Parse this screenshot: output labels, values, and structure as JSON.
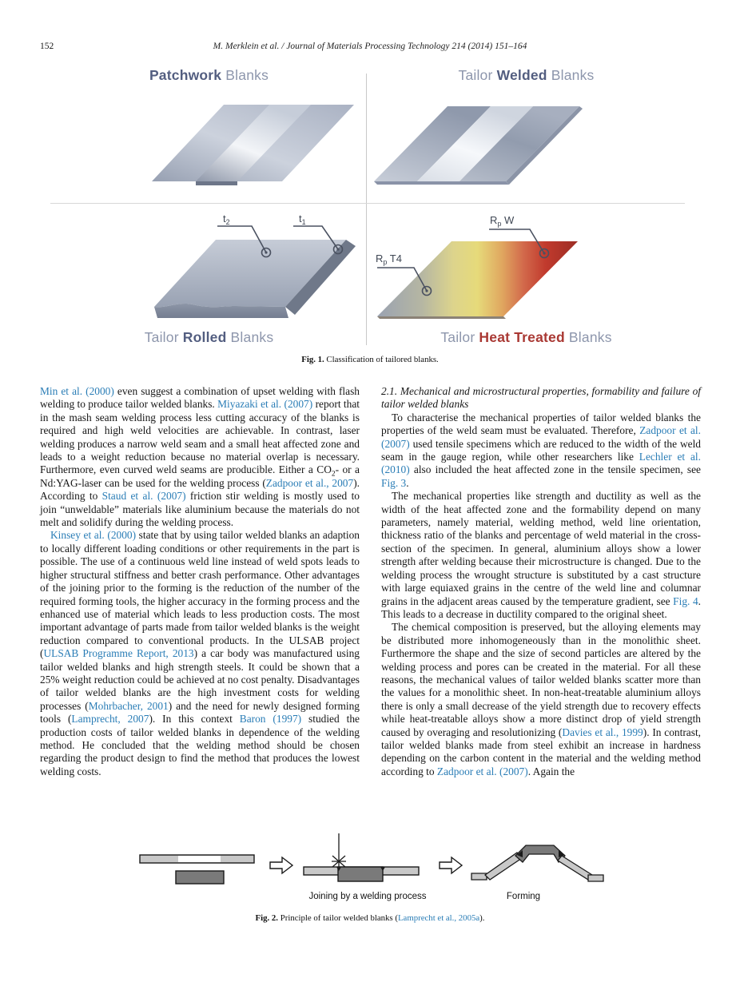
{
  "header": {
    "page_number": "152",
    "running_head": "M. Merklein et al. / Journal of Materials Processing Technology 214 (2014) 151–164"
  },
  "colors": {
    "link_blue": "#2a7db6",
    "title_light_blue": "#8d96ac",
    "title_dark_blue": "#535e80",
    "title_red": "#a93833",
    "heat_gradient_ends": [
      "#9aa2b1",
      "#e6da7a",
      "#9c2d24"
    ]
  },
  "fig1": {
    "titles": {
      "patchwork": [
        {
          "t": "Patchwork",
          "b": 1
        },
        {
          "t": " Blanks"
        }
      ],
      "welded": [
        {
          "t": "Tailor "
        },
        {
          "t": "Welded",
          "b": 1
        },
        {
          "t": " Blanks"
        }
      ],
      "rolled": [
        {
          "t": "Tailor "
        },
        {
          "t": "Rolled",
          "b": 1
        },
        {
          "t": " Blanks"
        }
      ],
      "heat": [
        {
          "t": "Tailor "
        },
        {
          "t": "Heat Treated",
          "red": 1
        },
        {
          "t": " Blanks"
        }
      ]
    },
    "annotations": {
      "t2_main": "t",
      "t2_sub": "2",
      "t1_main": "t",
      "t1_sub": "1",
      "rpt4_main": "R",
      "rpt4_sub": "p",
      "rpt4_rest": " T4",
      "rpw_main": "R",
      "rpw_sub": "p",
      "rpw_rest": " W"
    },
    "caption": [
      {
        "t": "Fig. 1.",
        "b": 1
      },
      {
        "t": "  Classification of tailored blanks."
      }
    ]
  },
  "article": {
    "left_col": {
      "p1": [
        {
          "t": "Min et al. (2000)",
          "link": 1
        },
        {
          "t": " even suggest a combination of upset welding with flash welding to produce tailor welded blanks. "
        },
        {
          "t": "Miyazaki et al. (2007)",
          "link": 1
        },
        {
          "t": " report that in the mash seam welding process less cutting accuracy of the blanks is required and high weld velocities are achievable. In contrast, laser welding produces a narrow weld seam and a small heat affected zone and leads to a weight reduction because no material overlap is necessary. Furthermore, even curved weld seams are producible. Either a CO"
        },
        {
          "t": "2",
          "sub": 1
        },
        {
          "t": "- or a Nd:YAG-laser can be used for the welding process ("
        },
        {
          "t": "Zadpoor et al., 2007",
          "link": 1
        },
        {
          "t": "). According to "
        },
        {
          "t": "Staud et al. (2007)",
          "link": 1
        },
        {
          "t": " friction stir welding is mostly used to join “unweldable” materials like aluminium because the materials do not melt and solidify during the welding process."
        }
      ],
      "p2": [
        {
          "t": "Kinsey et al. (2000)",
          "link": 1
        },
        {
          "t": " state that by using tailor welded blanks an adaption to locally different loading conditions or other requirements in the part is possible. The use of a continuous weld line instead of weld spots leads to higher structural stiffness and better crash performance. Other advantages of the joining prior to the forming is the reduction of the number of the required forming tools, the higher accuracy in the forming process and the enhanced use of material which leads to less production costs. The most important advantage of parts made from tailor welded blanks is the weight reduction compared to conventional products. In the ULSAB project ("
        },
        {
          "t": "ULSAB Programme Report, 2013",
          "link": 1
        },
        {
          "t": ") a car body was manufactured using tailor welded blanks and high strength steels. It could be shown that a 25% weight reduction could be achieved at no cost penalty. Disadvantages of tailor welded blanks are the high investment costs for welding processes ("
        },
        {
          "t": "Mohrbacher, 2001",
          "link": 1
        },
        {
          "t": ") and the need for newly designed forming tools ("
        },
        {
          "t": "Lamprecht, 2007",
          "link": 1
        },
        {
          "t": "). In this context "
        },
        {
          "t": "Baron (1997)",
          "link": 1
        },
        {
          "t": " studied the production costs of tailor welded blanks in dependence of the welding method. He concluded that the welding method should be chosen regarding the product design to find the method that produces the lowest welding costs."
        }
      ]
    },
    "right_col": {
      "heading": "2.1.  Mechanical and microstructural properties, formability and failure of tailor welded blanks",
      "p1": [
        {
          "t": "To characterise the mechanical properties of tailor welded blanks the properties of the weld seam must be evaluated. Therefore, "
        },
        {
          "t": "Zadpoor et al. (2007)",
          "link": 1
        },
        {
          "t": " used tensile specimens which are reduced to the width of the weld seam in the gauge region, while other researchers like "
        },
        {
          "t": "Lechler et al. (2010)",
          "link": 1
        },
        {
          "t": " also included the heat affected zone in the tensile specimen, see "
        },
        {
          "t": "Fig. 3",
          "link": 1
        },
        {
          "t": "."
        }
      ],
      "p2": [
        {
          "t": "The mechanical properties like strength and ductility as well as the width of the heat affected zone and the formability depend on many parameters, namely material, welding method, weld line orientation, thickness ratio of the blanks and percentage of weld material in the cross-section of the specimen. In general, aluminium alloys show a lower strength after welding because their microstructure is changed. Due to the welding process the wrought structure is substituted by a cast structure with large equiaxed grains in the centre of the weld line and columnar grains in the adjacent areas caused by the temperature gradient, see "
        },
        {
          "t": "Fig. 4",
          "link": 1
        },
        {
          "t": ". This leads to a decrease in ductility compared to the original sheet."
        }
      ],
      "p3": [
        {
          "t": "The chemical composition is preserved, but the alloying elements may be distributed more inhomogeneously than in the monolithic sheet. Furthermore the shape and the size of second particles are altered by the welding process and pores can be created in the material. For all these reasons, the mechanical values of tailor welded blanks scatter more than the values for a monolithic sheet. In non-heat-treatable aluminium alloys there is only a small decrease of the yield strength due to recovery effects while heat-treatable alloys show a more distinct drop of yield strength caused by overaging and resolutionizing ("
        },
        {
          "t": "Davies et al., 1999",
          "link": 1
        },
        {
          "t": "). In contrast, tailor welded blanks made from steel exhibit an increase in hardness depending on the carbon content in the material and the welding method according to "
        },
        {
          "t": "Zadpoor et al. (2007)",
          "link": 1
        },
        {
          "t": ". Again the"
        }
      ]
    }
  },
  "fig2": {
    "label_joining": "Joining by a welding process",
    "label_forming": "Forming",
    "caption": [
      {
        "t": "Fig. 2.",
        "b": 1
      },
      {
        "t": "  Principle of tailor welded blanks ("
      },
      {
        "t": "Lamprecht et al., 2005a",
        "link": 1
      },
      {
        "t": ")."
      }
    ]
  }
}
